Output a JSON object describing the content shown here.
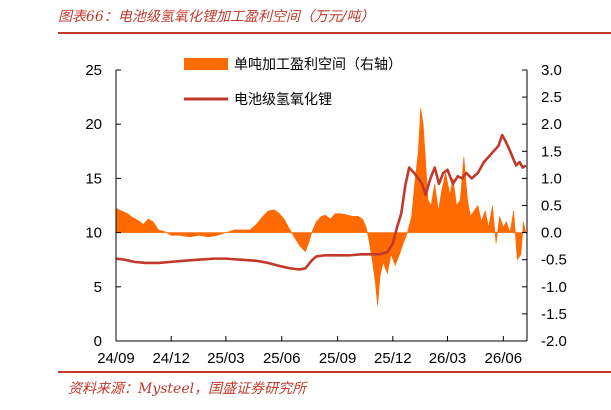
{
  "figure": {
    "title": "图表66：电池级氢氧化锂加工盈利空间（万元/吨）",
    "source": "资料来源：Mysteel，国盛证券研究所",
    "colors": {
      "accent": "#c0392b",
      "area": "#ff6a00",
      "line": "#c0392b"
    }
  },
  "chart_data": {
    "type": "area",
    "title": "图表66：电池级氢氧化锂加工盈利空间（万元/吨）",
    "xlabel": "",
    "x_ticks": [
      "24/09",
      "24/12",
      "25/03",
      "25/06",
      "25/09",
      "25/12",
      "26/03",
      "26/06"
    ],
    "xlim": [
      "2024-09-01",
      "2026-07-10"
    ],
    "left_axis": {
      "ylim": [
        0,
        25
      ],
      "ticks": [
        "0",
        "5",
        "10",
        "15",
        "20",
        "25"
      ]
    },
    "right_axis": {
      "ylim": [
        -2.0,
        3.0
      ],
      "ticks": [
        "-2.0",
        "-1.5",
        "-1.0",
        "-0.5",
        "0.0",
        "0.5",
        "1.0",
        "1.5",
        "2.0",
        "2.5",
        "3.0"
      ]
    },
    "legend": {
      "position": "top-center"
    },
    "series": [
      {
        "name": "单吨加工盈利空间（右轴）",
        "kind": "area",
        "axis": "right",
        "color": "#ff6a00",
        "points": [
          [
            "2024-09-01",
            0.45
          ],
          [
            "2024-09-10",
            0.4
          ],
          [
            "2024-09-20",
            0.35
          ],
          [
            "2024-09-28",
            0.28
          ],
          [
            "2024-10-08",
            0.22
          ],
          [
            "2024-10-16",
            0.15
          ],
          [
            "2024-10-24",
            0.25
          ],
          [
            "2024-11-01",
            0.2
          ],
          [
            "2024-11-10",
            0.05
          ],
          [
            "2024-11-20",
            0.02
          ],
          [
            "2024-12-01",
            -0.05
          ],
          [
            "2024-12-15",
            -0.05
          ],
          [
            "2025-01-01",
            -0.08
          ],
          [
            "2025-01-15",
            -0.05
          ],
          [
            "2025-02-01",
            -0.08
          ],
          [
            "2025-02-15",
            -0.05
          ],
          [
            "2025-03-01",
            0.0
          ],
          [
            "2025-03-15",
            0.05
          ],
          [
            "2025-04-01",
            0.05
          ],
          [
            "2025-04-10",
            0.05
          ],
          [
            "2025-04-20",
            0.15
          ],
          [
            "2025-05-01",
            0.3
          ],
          [
            "2025-05-10",
            0.4
          ],
          [
            "2025-05-20",
            0.42
          ],
          [
            "2025-05-28",
            0.35
          ],
          [
            "2025-06-05",
            0.25
          ],
          [
            "2025-06-12",
            0.1
          ],
          [
            "2025-06-20",
            -0.05
          ],
          [
            "2025-07-01",
            -0.25
          ],
          [
            "2025-07-10",
            -0.35
          ],
          [
            "2025-07-15",
            -0.2
          ],
          [
            "2025-07-22",
            0.05
          ],
          [
            "2025-07-28",
            0.2
          ],
          [
            "2025-08-05",
            0.3
          ],
          [
            "2025-08-12",
            0.32
          ],
          [
            "2025-08-20",
            0.25
          ],
          [
            "2025-08-28",
            0.35
          ],
          [
            "2025-09-05",
            0.35
          ],
          [
            "2025-09-15",
            0.33
          ],
          [
            "2025-09-25",
            0.3
          ],
          [
            "2025-10-05",
            0.3
          ],
          [
            "2025-10-12",
            0.25
          ],
          [
            "2025-10-18",
            0.1
          ],
          [
            "2025-10-22",
            -0.1
          ],
          [
            "2025-10-28",
            -0.5
          ],
          [
            "2025-11-02",
            -0.9
          ],
          [
            "2025-11-06",
            -1.35
          ],
          [
            "2025-11-10",
            -0.8
          ],
          [
            "2025-11-15",
            -0.55
          ],
          [
            "2025-11-22",
            -0.75
          ],
          [
            "2025-11-28",
            -0.4
          ],
          [
            "2025-12-05",
            -0.6
          ],
          [
            "2025-12-12",
            -0.4
          ],
          [
            "2025-12-18",
            -0.2
          ],
          [
            "2025-12-25",
            0.0
          ],
          [
            "2026-01-01",
            0.3
          ],
          [
            "2026-01-06",
            0.9
          ],
          [
            "2026-01-12",
            1.5
          ],
          [
            "2026-01-16",
            2.3
          ],
          [
            "2026-01-20",
            2.0
          ],
          [
            "2026-01-24",
            1.3
          ],
          [
            "2026-01-28",
            0.6
          ],
          [
            "2026-02-02",
            0.5
          ],
          [
            "2026-02-08",
            0.9
          ],
          [
            "2026-02-14",
            0.4
          ],
          [
            "2026-02-20",
            0.8
          ],
          [
            "2026-02-26",
            1.1
          ],
          [
            "2026-03-05",
            0.7
          ],
          [
            "2026-03-10",
            1.0
          ],
          [
            "2026-03-16",
            0.5
          ],
          [
            "2026-03-22",
            0.6
          ],
          [
            "2026-03-28",
            1.4
          ],
          [
            "2026-04-03",
            0.6
          ],
          [
            "2026-04-08",
            0.3
          ],
          [
            "2026-04-14",
            0.4
          ],
          [
            "2026-04-20",
            0.5
          ],
          [
            "2026-04-26",
            0.2
          ],
          [
            "2026-05-02",
            0.4
          ],
          [
            "2026-05-08",
            0.1
          ],
          [
            "2026-05-14",
            0.5
          ],
          [
            "2026-05-20",
            -0.2
          ],
          [
            "2026-05-26",
            0.3
          ],
          [
            "2026-06-01",
            0.1
          ],
          [
            "2026-06-06",
            0.2
          ],
          [
            "2026-06-12",
            0.0
          ],
          [
            "2026-06-18",
            0.4
          ],
          [
            "2026-06-24",
            -0.5
          ],
          [
            "2026-06-30",
            -0.4
          ],
          [
            "2026-07-04",
            0.2
          ],
          [
            "2026-07-08",
            0.0
          ]
        ]
      },
      {
        "name": "电池级氢氧化锂",
        "kind": "line",
        "axis": "left",
        "color": "#c0392b",
        "points": [
          [
            "2024-09-01",
            7.6
          ],
          [
            "2024-09-15",
            7.5
          ],
          [
            "2024-10-01",
            7.3
          ],
          [
            "2024-10-20",
            7.2
          ],
          [
            "2024-11-10",
            7.2
          ],
          [
            "2024-12-01",
            7.3
          ],
          [
            "2024-12-20",
            7.4
          ],
          [
            "2025-01-15",
            7.5
          ],
          [
            "2025-02-10",
            7.6
          ],
          [
            "2025-03-01",
            7.6
          ],
          [
            "2025-03-25",
            7.5
          ],
          [
            "2025-04-20",
            7.4
          ],
          [
            "2025-05-10",
            7.2
          ],
          [
            "2025-05-30",
            6.9
          ],
          [
            "2025-06-15",
            6.7
          ],
          [
            "2025-06-30",
            6.6
          ],
          [
            "2025-07-10",
            6.7
          ],
          [
            "2025-07-20",
            7.4
          ],
          [
            "2025-07-28",
            7.8
          ],
          [
            "2025-08-10",
            7.9
          ],
          [
            "2025-09-01",
            7.9
          ],
          [
            "2025-09-20",
            7.9
          ],
          [
            "2025-10-10",
            8.0
          ],
          [
            "2025-10-25",
            8.0
          ],
          [
            "2025-11-10",
            8.0
          ],
          [
            "2025-11-22",
            8.2
          ],
          [
            "2025-12-01",
            9.0
          ],
          [
            "2025-12-08",
            10.5
          ],
          [
            "2025-12-15",
            11.8
          ],
          [
            "2025-12-22",
            14.5
          ],
          [
            "2025-12-28",
            16.0
          ],
          [
            "2026-01-05",
            15.5
          ],
          [
            "2026-01-12",
            15.0
          ],
          [
            "2026-01-18",
            14.5
          ],
          [
            "2026-01-24",
            13.5
          ],
          [
            "2026-02-01",
            15.0
          ],
          [
            "2026-02-08",
            16.0
          ],
          [
            "2026-02-15",
            14.5
          ],
          [
            "2026-02-22",
            15.5
          ],
          [
            "2026-03-01",
            15.8
          ],
          [
            "2026-03-10",
            14.5
          ],
          [
            "2026-03-18",
            15.2
          ],
          [
            "2026-03-25",
            15.0
          ],
          [
            "2026-04-01",
            15.5
          ],
          [
            "2026-04-10",
            15.0
          ],
          [
            "2026-04-20",
            15.5
          ],
          [
            "2026-04-30",
            16.5
          ],
          [
            "2026-05-08",
            17.0
          ],
          [
            "2026-05-16",
            17.5
          ],
          [
            "2026-05-24",
            18.0
          ],
          [
            "2026-05-30",
            19.0
          ],
          [
            "2026-06-04",
            18.5
          ],
          [
            "2026-06-10",
            17.8
          ],
          [
            "2026-06-16",
            17.0
          ],
          [
            "2026-06-22",
            16.2
          ],
          [
            "2026-06-28",
            16.5
          ],
          [
            "2026-07-03",
            16.0
          ],
          [
            "2026-07-08",
            16.2
          ]
        ]
      }
    ]
  }
}
